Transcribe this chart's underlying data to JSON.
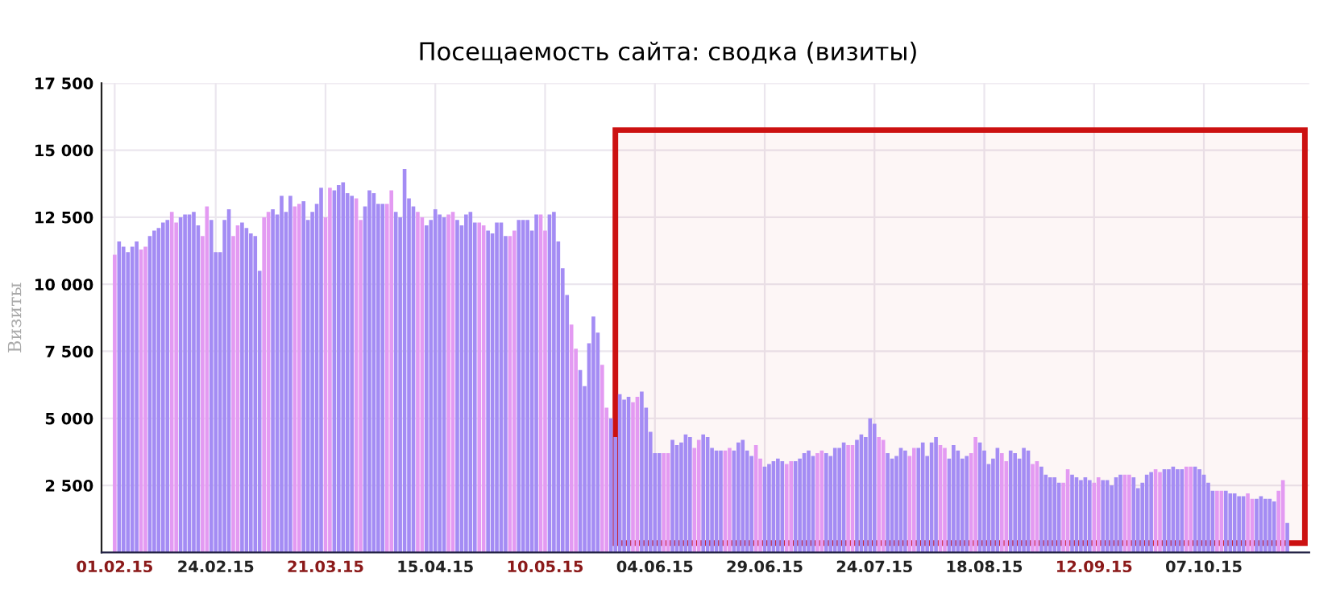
{
  "chart_data": {
    "type": "bar",
    "title": "Посещаемость сайта: сводка (визиты)",
    "ylabel": "Визиты",
    "x": [
      "2015-02-01",
      "2015-02-02",
      "2015-02-03",
      "2015-02-04",
      "2015-02-05",
      "2015-02-06",
      "2015-02-07",
      "2015-02-08",
      "2015-02-09",
      "2015-02-10",
      "2015-02-11",
      "2015-02-12",
      "2015-02-13",
      "2015-02-14",
      "2015-02-15",
      "2015-02-16",
      "2015-02-17",
      "2015-02-18",
      "2015-02-19",
      "2015-02-20",
      "2015-02-21",
      "2015-02-22",
      "2015-02-23",
      "2015-02-24",
      "2015-02-25",
      "2015-02-26",
      "2015-02-27",
      "2015-02-28",
      "2015-03-01",
      "2015-03-02",
      "2015-03-03",
      "2015-03-04",
      "2015-03-05",
      "2015-03-06",
      "2015-03-07",
      "2015-03-08",
      "2015-03-09",
      "2015-03-10",
      "2015-03-11",
      "2015-03-12",
      "2015-03-13",
      "2015-03-14",
      "2015-03-15",
      "2015-03-16",
      "2015-03-17",
      "2015-03-18",
      "2015-03-19",
      "2015-03-20",
      "2015-03-21",
      "2015-03-22",
      "2015-03-23",
      "2015-03-24",
      "2015-03-25",
      "2015-03-26",
      "2015-03-27",
      "2015-03-28",
      "2015-03-29",
      "2015-03-30",
      "2015-03-31",
      "2015-04-01",
      "2015-04-02",
      "2015-04-03",
      "2015-04-04",
      "2015-04-05",
      "2015-04-06",
      "2015-04-07",
      "2015-04-08",
      "2015-04-09",
      "2015-04-10",
      "2015-04-11",
      "2015-04-12",
      "2015-04-13",
      "2015-04-14",
      "2015-04-15",
      "2015-04-16",
      "2015-04-17",
      "2015-04-18",
      "2015-04-19",
      "2015-04-20",
      "2015-04-21",
      "2015-04-22",
      "2015-04-23",
      "2015-04-24",
      "2015-04-25",
      "2015-04-26",
      "2015-04-27",
      "2015-04-28",
      "2015-04-29",
      "2015-04-30",
      "2015-05-01",
      "2015-05-02",
      "2015-05-03",
      "2015-05-04",
      "2015-05-05",
      "2015-05-06",
      "2015-05-07",
      "2015-05-08",
      "2015-05-09",
      "2015-05-10",
      "2015-05-11",
      "2015-05-12",
      "2015-05-13",
      "2015-05-14",
      "2015-05-15",
      "2015-05-16",
      "2015-05-17",
      "2015-05-18",
      "2015-05-19",
      "2015-05-20",
      "2015-05-21",
      "2015-05-22",
      "2015-05-23",
      "2015-05-24",
      "2015-05-25",
      "2015-05-26",
      "2015-05-27",
      "2015-05-28",
      "2015-05-29",
      "2015-05-30",
      "2015-05-31",
      "2015-06-01",
      "2015-06-02",
      "2015-06-03",
      "2015-06-04",
      "2015-06-05",
      "2015-06-06",
      "2015-06-07",
      "2015-06-08",
      "2015-06-09",
      "2015-06-10",
      "2015-06-11",
      "2015-06-12",
      "2015-06-13",
      "2015-06-14",
      "2015-06-15",
      "2015-06-16",
      "2015-06-17",
      "2015-06-18",
      "2015-06-19",
      "2015-06-20",
      "2015-06-21",
      "2015-06-22",
      "2015-06-23",
      "2015-06-24",
      "2015-06-25",
      "2015-06-26",
      "2015-06-27",
      "2015-06-28",
      "2015-06-29",
      "2015-06-30",
      "2015-07-01",
      "2015-07-02",
      "2015-07-03",
      "2015-07-04",
      "2015-07-05",
      "2015-07-06",
      "2015-07-07",
      "2015-07-08",
      "2015-07-09",
      "2015-07-10",
      "2015-07-11",
      "2015-07-12",
      "2015-07-13",
      "2015-07-14",
      "2015-07-15",
      "2015-07-16",
      "2015-07-17",
      "2015-07-18",
      "2015-07-19",
      "2015-07-20",
      "2015-07-21",
      "2015-07-22",
      "2015-07-23",
      "2015-07-24",
      "2015-07-25",
      "2015-07-26",
      "2015-07-27",
      "2015-07-28",
      "2015-07-29",
      "2015-07-30",
      "2015-07-31",
      "2015-08-01",
      "2015-08-02",
      "2015-08-03",
      "2015-08-04",
      "2015-08-05",
      "2015-08-06",
      "2015-08-07",
      "2015-08-08",
      "2015-08-09",
      "2015-08-10",
      "2015-08-11",
      "2015-08-12",
      "2015-08-13",
      "2015-08-14",
      "2015-08-15",
      "2015-08-16",
      "2015-08-17",
      "2015-08-18",
      "2015-08-19",
      "2015-08-20",
      "2015-08-21",
      "2015-08-22",
      "2015-08-23",
      "2015-08-24",
      "2015-08-25",
      "2015-08-26",
      "2015-08-27",
      "2015-08-28",
      "2015-08-29",
      "2015-08-30",
      "2015-08-31",
      "2015-09-01",
      "2015-09-02",
      "2015-09-03",
      "2015-09-04",
      "2015-09-05",
      "2015-09-06",
      "2015-09-07",
      "2015-09-08",
      "2015-09-09",
      "2015-09-10",
      "2015-09-11",
      "2015-09-12",
      "2015-09-13",
      "2015-09-14",
      "2015-09-15",
      "2015-09-16",
      "2015-09-17",
      "2015-09-18",
      "2015-09-19",
      "2015-09-20",
      "2015-09-21",
      "2015-09-22",
      "2015-09-23",
      "2015-09-24",
      "2015-09-25",
      "2015-09-26",
      "2015-09-27",
      "2015-09-28",
      "2015-09-29",
      "2015-09-30",
      "2015-10-01",
      "2015-10-02",
      "2015-10-03",
      "2015-10-04",
      "2015-10-05",
      "2015-10-06",
      "2015-10-07",
      "2015-10-08",
      "2015-10-09",
      "2015-10-10",
      "2015-10-11",
      "2015-10-12",
      "2015-10-13",
      "2015-10-14",
      "2015-10-15",
      "2015-10-16",
      "2015-10-17",
      "2015-10-18",
      "2015-10-19",
      "2015-10-20",
      "2015-10-21",
      "2015-10-22",
      "2015-10-23",
      "2015-10-24",
      "2015-10-25",
      "2015-10-26"
    ],
    "values": [
      11100,
      11600,
      11400,
      11200,
      11400,
      11600,
      11300,
      11400,
      11800,
      12000,
      12100,
      12300,
      12400,
      12700,
      12300,
      12500,
      12600,
      12600,
      12700,
      12200,
      11800,
      12900,
      12400,
      11200,
      11200,
      12400,
      12800,
      11800,
      12200,
      12300,
      12100,
      11900,
      11800,
      10500,
      12500,
      12700,
      12800,
      12600,
      13300,
      12700,
      13300,
      12900,
      13000,
      13100,
      12400,
      12700,
      13000,
      13600,
      12500,
      13600,
      13500,
      13700,
      13800,
      13400,
      13300,
      13200,
      12400,
      12900,
      13500,
      13400,
      13000,
      13000,
      13000,
      13500,
      12700,
      12500,
      14300,
      13200,
      12900,
      12700,
      12500,
      12200,
      12400,
      12800,
      12600,
      12500,
      12600,
      12700,
      12400,
      12200,
      12600,
      12700,
      12300,
      12300,
      12200,
      12000,
      11900,
      12300,
      12300,
      11800,
      11800,
      12000,
      12400,
      12400,
      12400,
      12000,
      12600,
      12600,
      12000,
      12600,
      12700,
      11600,
      10600,
      9600,
      8500,
      7600,
      6800,
      6200,
      7800,
      8800,
      8200,
      7000,
      5400,
      5000,
      4300,
      5900,
      5700,
      5800,
      5600,
      5800,
      6000,
      5400,
      4500,
      3700,
      3700,
      3700,
      3700,
      4200,
      4000,
      4100,
      4400,
      4300,
      3900,
      4200,
      4400,
      4300,
      3900,
      3800,
      3800,
      3800,
      3900,
      3800,
      4100,
      4200,
      3800,
      3600,
      4000,
      3500,
      3200,
      3300,
      3400,
      3500,
      3400,
      3300,
      3400,
      3400,
      3500,
      3700,
      3800,
      3600,
      3700,
      3800,
      3700,
      3600,
      3900,
      3900,
      4100,
      4000,
      4000,
      4200,
      4400,
      4300,
      5000,
      4800,
      4300,
      4200,
      3700,
      3500,
      3600,
      3900,
      3800,
      3600,
      3900,
      3900,
      4100,
      3600,
      4100,
      4300,
      4000,
      3900,
      3500,
      4000,
      3800,
      3500,
      3600,
      3700,
      4300,
      4100,
      3800,
      3300,
      3500,
      3900,
      3700,
      3400,
      3800,
      3700,
      3500,
      3900,
      3800,
      3300,
      3400,
      3200,
      2900,
      2800,
      2800,
      2600,
      2600,
      3100,
      2900,
      2800,
      2700,
      2800,
      2700,
      2600,
      2800,
      2700,
      2700,
      2500,
      2800,
      2900,
      2900,
      2900,
      2800,
      2400,
      2600,
      2900,
      3000,
      3100,
      3000,
      3100,
      3100,
      3200,
      3100,
      3100,
      3200,
      3200,
      3200,
      3100,
      2900,
      2600,
      2300,
      2300,
      2300,
      2300,
      2200,
      2200,
      2100,
      2100,
      2200,
      2000,
      2000,
      2100,
      2000,
      2000,
      1900,
      2300,
      2700,
      1100
    ],
    "colors": [
      "#e39af2",
      "#a48cf4",
      "#a48cf4",
      "#a48cf4",
      "#a48cf4",
      "#a48cf4",
      "#e39af2",
      "#e39af2",
      "#a48cf4",
      "#a48cf4",
      "#a48cf4",
      "#a48cf4",
      "#a48cf4",
      "#e39af2",
      "#e39af2",
      "#a48cf4",
      "#a48cf4",
      "#a48cf4",
      "#a48cf4",
      "#a48cf4",
      "#e39af2",
      "#e39af2",
      "#a48cf4",
      "#a48cf4",
      "#a48cf4",
      "#a48cf4",
      "#a48cf4",
      "#e39af2",
      "#e39af2",
      "#a48cf4",
      "#a48cf4",
      "#a48cf4",
      "#a48cf4",
      "#a48cf4",
      "#e39af2",
      "#e39af2",
      "#a48cf4",
      "#a48cf4",
      "#a48cf4",
      "#a48cf4",
      "#a48cf4",
      "#e39af2",
      "#e39af2",
      "#a48cf4",
      "#a48cf4",
      "#a48cf4",
      "#a48cf4",
      "#a48cf4",
      "#e39af2",
      "#e39af2",
      "#a48cf4",
      "#a48cf4",
      "#a48cf4",
      "#a48cf4",
      "#a48cf4",
      "#e39af2",
      "#e39af2",
      "#a48cf4",
      "#a48cf4",
      "#a48cf4",
      "#a48cf4",
      "#a48cf4",
      "#e39af2",
      "#e39af2",
      "#a48cf4",
      "#a48cf4",
      "#a48cf4",
      "#a48cf4",
      "#a48cf4",
      "#e39af2",
      "#e39af2",
      "#a48cf4",
      "#a48cf4",
      "#a48cf4",
      "#a48cf4",
      "#a48cf4",
      "#e39af2",
      "#e39af2",
      "#a48cf4",
      "#a48cf4",
      "#a48cf4",
      "#a48cf4",
      "#a48cf4",
      "#e39af2",
      "#e39af2",
      "#a48cf4",
      "#a48cf4",
      "#a48cf4",
      "#a48cf4",
      "#a48cf4",
      "#e39af2",
      "#e39af2",
      "#a48cf4",
      "#a48cf4",
      "#a48cf4",
      "#a48cf4",
      "#a48cf4",
      "#e39af2",
      "#e39af2",
      "#a48cf4",
      "#a48cf4",
      "#a48cf4",
      "#a48cf4",
      "#a48cf4",
      "#e39af2",
      "#e39af2",
      "#a48cf4",
      "#a48cf4",
      "#a48cf4",
      "#a48cf4",
      "#a48cf4",
      "#e39af2",
      "#e39af2",
      "#a48cf4",
      "#a48cf4",
      "#a48cf4",
      "#a48cf4",
      "#a48cf4",
      "#e39af2",
      "#e39af2",
      "#a48cf4",
      "#a48cf4",
      "#a48cf4",
      "#a48cf4",
      "#a48cf4",
      "#e39af2",
      "#e39af2",
      "#a48cf4",
      "#a48cf4",
      "#a48cf4",
      "#a48cf4",
      "#a48cf4",
      "#e39af2",
      "#e39af2",
      "#a48cf4",
      "#a48cf4",
      "#a48cf4",
      "#a48cf4",
      "#a48cf4",
      "#e39af2",
      "#e39af2",
      "#a48cf4",
      "#a48cf4",
      "#a48cf4",
      "#a48cf4",
      "#a48cf4",
      "#e39af2",
      "#e39af2",
      "#a48cf4",
      "#a48cf4",
      "#a48cf4",
      "#a48cf4",
      "#a48cf4",
      "#e39af2",
      "#e39af2",
      "#a48cf4",
      "#a48cf4",
      "#a48cf4",
      "#a48cf4",
      "#a48cf4",
      "#e39af2",
      "#e39af2",
      "#a48cf4",
      "#a48cf4",
      "#a48cf4",
      "#a48cf4",
      "#a48cf4",
      "#e39af2",
      "#e39af2",
      "#a48cf4",
      "#a48cf4",
      "#a48cf4",
      "#a48cf4",
      "#a48cf4",
      "#e39af2",
      "#e39af2",
      "#a48cf4",
      "#a48cf4",
      "#a48cf4",
      "#a48cf4",
      "#a48cf4",
      "#e39af2",
      "#e39af2",
      "#a48cf4",
      "#a48cf4",
      "#a48cf4",
      "#a48cf4",
      "#a48cf4",
      "#e39af2",
      "#e39af2",
      "#a48cf4",
      "#a48cf4",
      "#a48cf4",
      "#a48cf4",
      "#a48cf4",
      "#e39af2",
      "#e39af2",
      "#a48cf4",
      "#a48cf4",
      "#a48cf4",
      "#a48cf4",
      "#a48cf4",
      "#e39af2",
      "#e39af2",
      "#a48cf4",
      "#a48cf4",
      "#a48cf4",
      "#a48cf4",
      "#a48cf4",
      "#e39af2",
      "#e39af2",
      "#a48cf4",
      "#a48cf4",
      "#a48cf4",
      "#a48cf4",
      "#a48cf4",
      "#e39af2",
      "#e39af2",
      "#a48cf4",
      "#a48cf4",
      "#a48cf4",
      "#a48cf4",
      "#a48cf4",
      "#e39af2",
      "#e39af2",
      "#a48cf4",
      "#a48cf4",
      "#a48cf4",
      "#a48cf4",
      "#a48cf4",
      "#e39af2",
      "#e39af2",
      "#a48cf4",
      "#a48cf4",
      "#a48cf4",
      "#a48cf4",
      "#a48cf4",
      "#e39af2",
      "#e39af2",
      "#a48cf4",
      "#a48cf4",
      "#a48cf4",
      "#a48cf4",
      "#a48cf4",
      "#e39af2",
      "#e39af2",
      "#a48cf4",
      "#a48cf4",
      "#a48cf4",
      "#a48cf4",
      "#a48cf4",
      "#e39af2",
      "#e39af2",
      "#a48cf4",
      "#a48cf4",
      "#a48cf4",
      "#a48cf4",
      "#a48cf4",
      "#e39af2",
      "#e39af2",
      "#a48cf4",
      "#a48cf4",
      "#a48cf4",
      "#a48cf4",
      "#a48cf4",
      "#e39af2",
      "#e39af2",
      "#a48cf4"
    ],
    "xlim": [
      "2015-01-29",
      "2015-10-31"
    ],
    "xticks": [
      {
        "value": "2015-02-01",
        "label": "01.02.15"
      },
      {
        "value": "2015-02-24",
        "label": "24.02.15"
      },
      {
        "value": "2015-03-21",
        "label": "21.03.15"
      },
      {
        "value": "2015-04-15",
        "label": "15.04.15"
      },
      {
        "value": "2015-05-10",
        "label": "10.05.15"
      },
      {
        "value": "2015-06-04",
        "label": "04.06.15"
      },
      {
        "value": "2015-06-29",
        "label": "29.06.15"
      },
      {
        "value": "2015-07-24",
        "label": "24.07.15"
      },
      {
        "value": "2015-08-18",
        "label": "18.08.15"
      },
      {
        "value": "2015-09-12",
        "label": "12.09.15"
      },
      {
        "value": "2015-10-07",
        "label": "07.10.15"
      }
    ],
    "ylim": [
      0,
      17500
    ],
    "yticks": [
      {
        "value": 2500,
        "label": "2 500"
      },
      {
        "value": 5000,
        "label": "5 000"
      },
      {
        "value": 7500,
        "label": "7 500"
      },
      {
        "value": 10000,
        "label": "10 000"
      },
      {
        "value": 12500,
        "label": "12 500"
      },
      {
        "value": 15000,
        "label": "15 000"
      },
      {
        "value": 17500,
        "label": "17 500"
      }
    ],
    "grid": true,
    "bands": [
      {
        "axis": "x",
        "from": "2015-05-26",
        "to": "2015-10-30",
        "color": "#cc1111"
      }
    ]
  }
}
